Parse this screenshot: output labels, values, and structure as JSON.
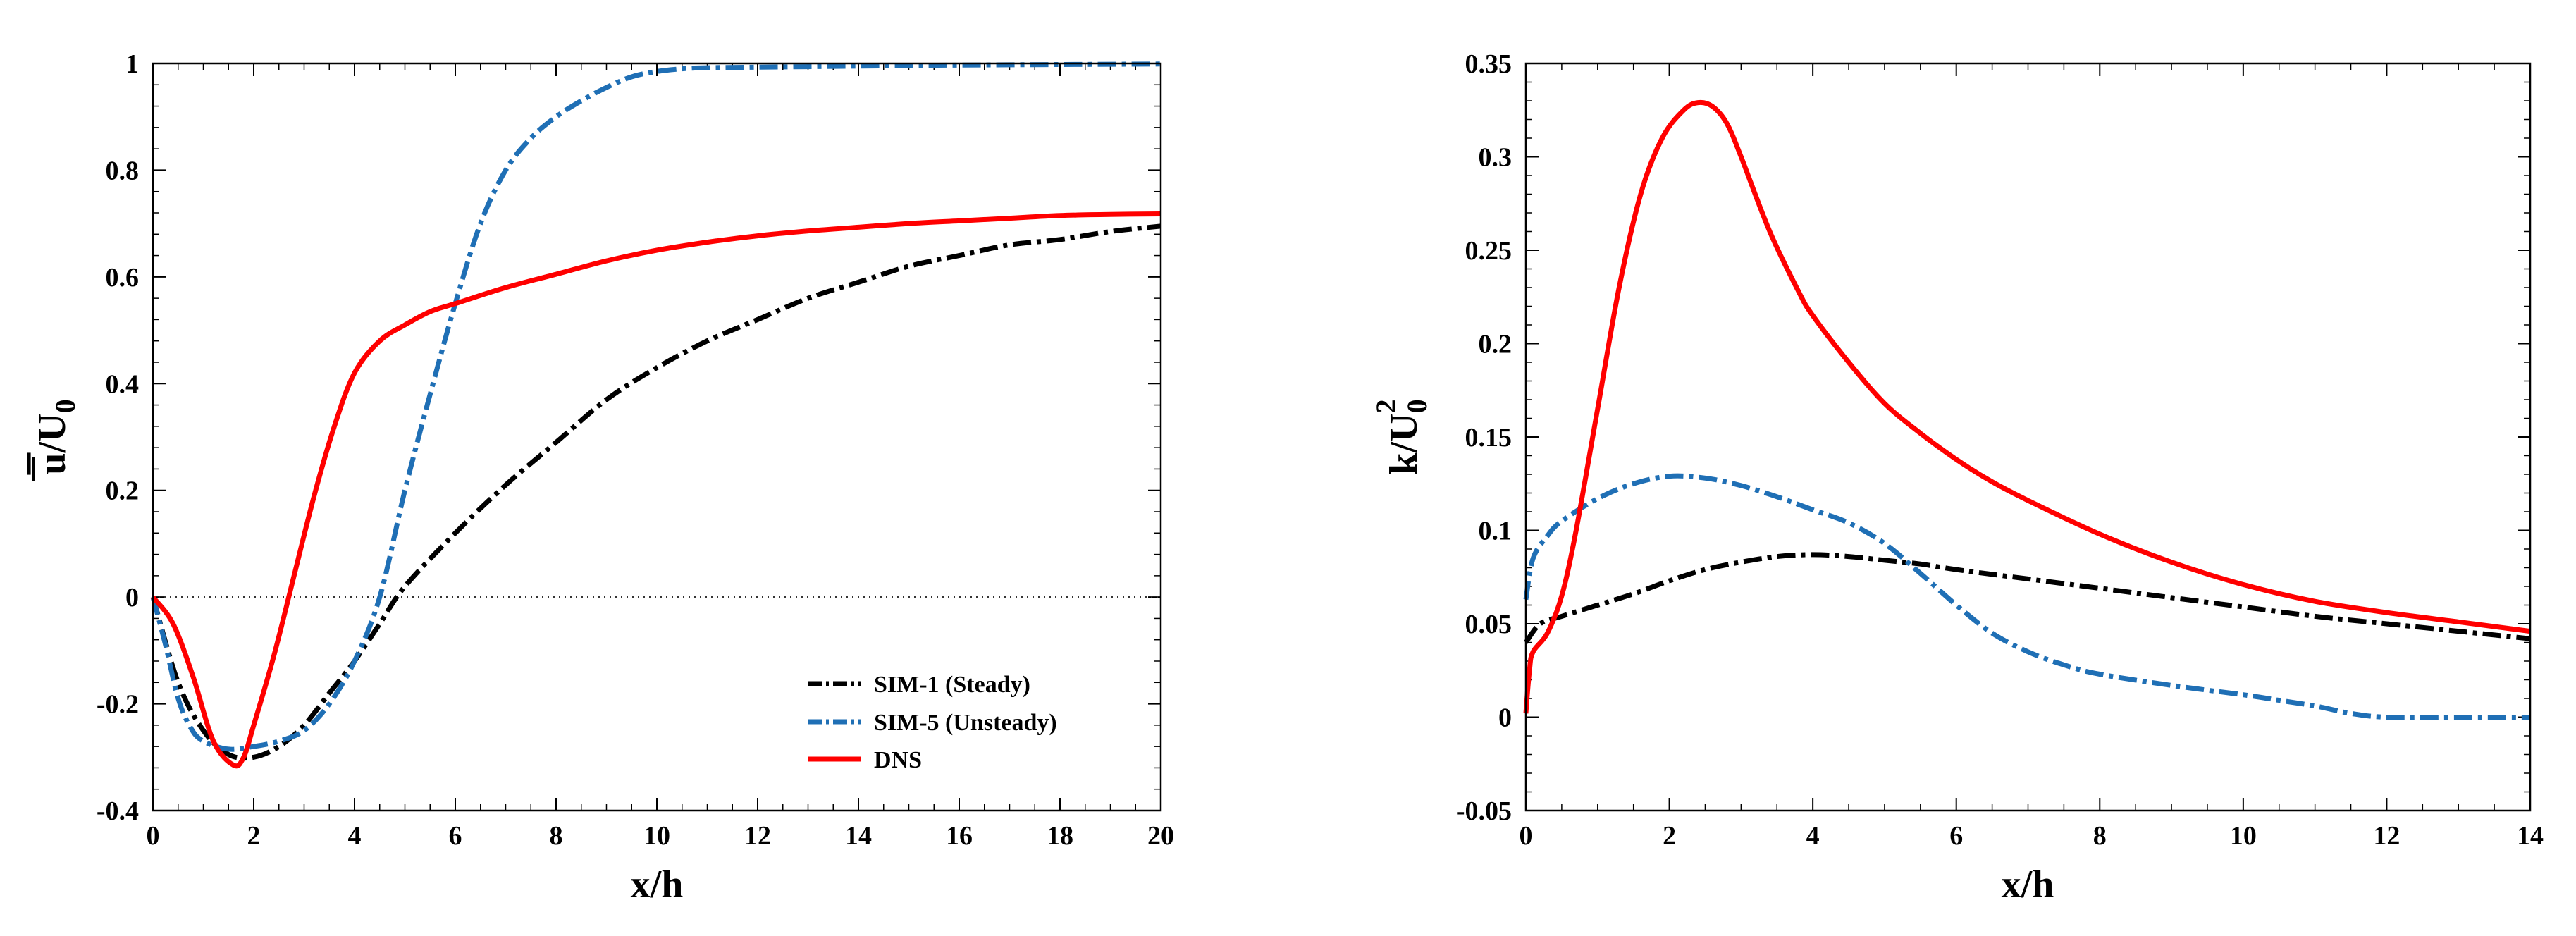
{
  "colors": {
    "sim1": "#000000",
    "sim5": "#1f6fb5",
    "dns": "#ff0000",
    "ref": "#333333"
  },
  "chart_data": [
    {
      "type": "line",
      "xlabel": "x/h",
      "ylabel": "u/U0",
      "ylabel_parts": {
        "main": "u",
        "sep": "/U",
        "sub": "0"
      },
      "xlim": [
        0,
        20
      ],
      "ylim": [
        -0.4,
        1.0
      ],
      "xticks": [
        0,
        2,
        4,
        6,
        8,
        10,
        12,
        14,
        16,
        18,
        20
      ],
      "xtick_labels": [
        "0",
        "2",
        "4",
        "6",
        "8",
        "10",
        "12",
        "14",
        "16",
        "18",
        "20"
      ],
      "yticks": [
        -0.4,
        -0.2,
        0,
        0.2,
        0.4,
        0.6,
        0.8,
        1.0
      ],
      "ytick_labels": [
        "-0.4",
        "-0.2",
        "0",
        "0.2",
        "0.4",
        "0.6",
        "0.8",
        "1"
      ],
      "reference_line": {
        "y": 0,
        "style": "dotted"
      },
      "legend": [
        {
          "label": "SIM-1 (Steady)",
          "series": "sim1"
        },
        {
          "label": "SIM-5 (Unsteady)",
          "series": "sim5"
        },
        {
          "label": "DNS",
          "series": "dns"
        }
      ],
      "series": [
        {
          "name": "SIM-1 (Steady)",
          "key": "sim1",
          "style": "dashdot",
          "x": [
            0,
            0.5,
            1,
            1.5,
            2,
            2.5,
            3,
            3.5,
            4,
            4.5,
            5,
            6,
            7,
            8,
            9,
            10,
            11,
            12,
            13,
            14,
            15,
            16,
            17,
            18,
            19,
            20
          ],
          "y": [
            0,
            -0.16,
            -0.25,
            -0.295,
            -0.3,
            -0.28,
            -0.24,
            -0.18,
            -0.12,
            -0.05,
            0.02,
            0.12,
            0.21,
            0.29,
            0.37,
            0.43,
            0.48,
            0.52,
            0.56,
            0.59,
            0.62,
            0.64,
            0.66,
            0.67,
            0.685,
            0.695
          ]
        },
        {
          "name": "SIM-5 (Unsteady)",
          "key": "sim5",
          "style": "dashdot",
          "x": [
            0,
            0.25,
            0.5,
            0.75,
            1,
            1.5,
            2,
            2.5,
            3,
            3.5,
            4,
            4.5,
            5,
            5.5,
            6,
            6.5,
            7,
            7.5,
            8,
            8.5,
            9,
            9.5,
            10,
            10.5,
            11,
            12,
            14,
            16,
            18,
            20
          ],
          "y": [
            0,
            -0.09,
            -0.19,
            -0.245,
            -0.27,
            -0.285,
            -0.28,
            -0.27,
            -0.25,
            -0.2,
            -0.12,
            0.0,
            0.2,
            0.38,
            0.55,
            0.7,
            0.8,
            0.86,
            0.9,
            0.93,
            0.955,
            0.975,
            0.985,
            0.99,
            0.992,
            0.993,
            0.995,
            0.997,
            0.998,
            0.999
          ]
        },
        {
          "name": "DNS",
          "key": "dns",
          "style": "solid",
          "x": [
            0,
            0.4,
            0.8,
            1.2,
            1.6,
            1.8,
            2.0,
            2.4,
            2.8,
            3.2,
            3.6,
            4.0,
            4.5,
            5,
            5.5,
            6,
            7,
            8,
            9,
            10,
            11,
            12,
            13,
            14,
            15,
            16,
            17,
            18,
            19,
            20
          ],
          "y": [
            0,
            -0.05,
            -0.15,
            -0.27,
            -0.315,
            -0.3,
            -0.24,
            -0.11,
            0.04,
            0.19,
            0.32,
            0.42,
            0.48,
            0.51,
            0.535,
            0.55,
            0.58,
            0.605,
            0.63,
            0.65,
            0.665,
            0.677,
            0.686,
            0.693,
            0.7,
            0.705,
            0.71,
            0.715,
            0.717,
            0.718
          ]
        }
      ]
    },
    {
      "type": "line",
      "xlabel": "x/h",
      "ylabel": "k/U0^2",
      "ylabel_parts": {
        "main": "k/U",
        "sub": "0",
        "sup": "2"
      },
      "xlim": [
        0,
        14
      ],
      "ylim": [
        -0.05,
        0.35
      ],
      "xticks": [
        0,
        2,
        4,
        6,
        8,
        10,
        12,
        14
      ],
      "xtick_labels": [
        "0",
        "2",
        "4",
        "6",
        "8",
        "10",
        "12",
        "14"
      ],
      "yticks": [
        -0.05,
        0,
        0.05,
        0.1,
        0.15,
        0.2,
        0.25,
        0.3,
        0.35
      ],
      "ytick_labels": [
        "-0.05",
        "0",
        "0.05",
        "0.1",
        "0.15",
        "0.2",
        "0.25",
        "0.3",
        "0.35"
      ],
      "series": [
        {
          "name": "SIM-1 (Steady)",
          "key": "sim1",
          "style": "dashdot",
          "x": [
            0,
            0.2,
            0.5,
            1,
            1.5,
            2,
            2.5,
            3,
            3.5,
            4,
            4.5,
            5,
            5.5,
            6,
            7,
            8,
            9,
            10,
            11,
            12,
            13,
            14
          ],
          "y": [
            0.04,
            0.05,
            0.054,
            0.06,
            0.066,
            0.073,
            0.079,
            0.083,
            0.086,
            0.087,
            0.086,
            0.084,
            0.082,
            0.079,
            0.074,
            0.069,
            0.064,
            0.059,
            0.054,
            0.05,
            0.046,
            0.042
          ]
        },
        {
          "name": "SIM-5 (Unsteady)",
          "key": "sim5",
          "style": "dashdot",
          "x": [
            0,
            0.1,
            0.3,
            0.5,
            1,
            1.5,
            2,
            2.5,
            3,
            3.5,
            4,
            4.5,
            5,
            5.5,
            6,
            6.5,
            7,
            7.5,
            8,
            9,
            10,
            10.5,
            11,
            11.5,
            12,
            13,
            14
          ],
          "y": [
            0.063,
            0.085,
            0.097,
            0.105,
            0.117,
            0.125,
            0.129,
            0.128,
            0.124,
            0.118,
            0.111,
            0.104,
            0.093,
            0.077,
            0.06,
            0.045,
            0.035,
            0.028,
            0.023,
            0.017,
            0.012,
            0.009,
            0.006,
            0.002,
            0.0,
            0.0,
            0.0
          ]
        },
        {
          "name": "DNS",
          "key": "dns",
          "style": "solid",
          "x": [
            0,
            0.05,
            0.1,
            0.3,
            0.5,
            0.7,
            1.0,
            1.3,
            1.6,
            1.9,
            2.2,
            2.4,
            2.6,
            2.8,
            3.0,
            3.4,
            3.8,
            4.0,
            4.5,
            5.0,
            5.5,
            6.0,
            6.5,
            7.0,
            8.0,
            9.0,
            10.0,
            11.0,
            12.0,
            13.0,
            14.0
          ],
          "y": [
            0.002,
            0.025,
            0.035,
            0.045,
            0.065,
            0.1,
            0.165,
            0.23,
            0.28,
            0.31,
            0.325,
            0.329,
            0.327,
            0.318,
            0.3,
            0.26,
            0.228,
            0.215,
            0.19,
            0.168,
            0.152,
            0.138,
            0.126,
            0.116,
            0.098,
            0.083,
            0.071,
            0.062,
            0.056,
            0.051,
            0.046
          ]
        }
      ]
    }
  ]
}
